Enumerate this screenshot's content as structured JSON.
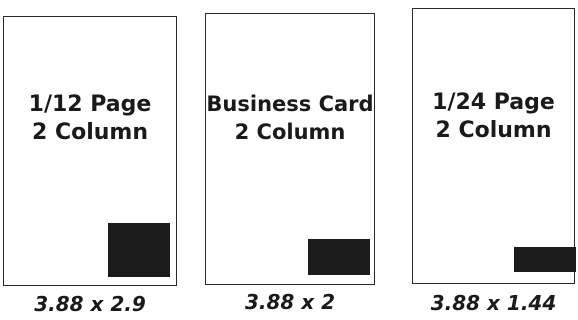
{
  "ads": [
    {
      "title_line1": "1/12 Page",
      "title_line2": "2 Column",
      "size": "3.88 x 2.9",
      "block_color": "#1b1b1b"
    },
    {
      "title_line1": "Business Card",
      "title_line2": "2 Column",
      "size": "3.88 x 2",
      "block_color": "#1b1b1b"
    },
    {
      "title_line1": "1/24 Page",
      "title_line2": "2 Column",
      "size": "3.88 x 1.44",
      "block_color": "#1b1b1b"
    }
  ]
}
